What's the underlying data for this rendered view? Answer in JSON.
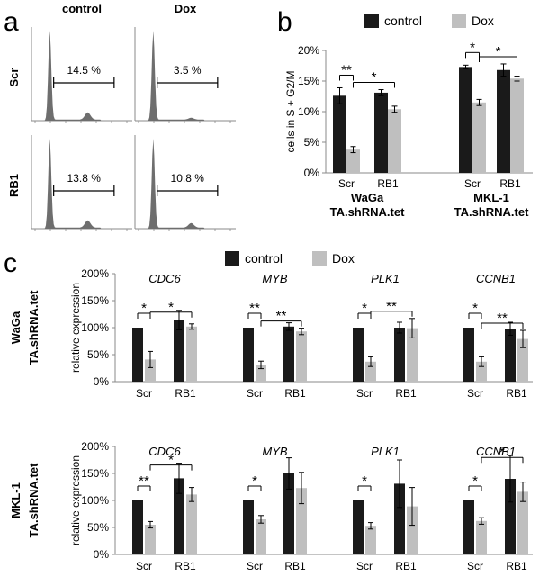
{
  "chart_data": [
    {
      "panel": "a",
      "type": "histogram",
      "column_labels": [
        "control",
        "Dox"
      ],
      "row_labels": [
        "Scr",
        "RB1"
      ],
      "gate_percentages": [
        [
          "14.5 %",
          "3.5 %"
        ],
        [
          "13.8 %",
          "10.8 %"
        ]
      ]
    },
    {
      "panel": "b",
      "type": "bar",
      "ylabel": "cells in S + G2/M",
      "ylim": [
        0,
        20
      ],
      "yticks": [
        "0%",
        "5%",
        "10%",
        "15%",
        "20%"
      ],
      "legend": [
        "control",
        "Dox"
      ],
      "groups": [
        {
          "name_line1": "WaGa",
          "name_line2": "TA.shRNA.tet",
          "categories": [
            "Scr",
            "RB1"
          ],
          "control": [
            12.6,
            13.1
          ],
          "control_err": [
            1.3,
            0.5
          ],
          "dox": [
            3.8,
            10.4
          ],
          "dox_err": [
            0.5,
            0.5
          ],
          "sig": [
            {
              "label": "**",
              "from": "Scr-control",
              "to": "Scr-dox"
            },
            {
              "label": "*",
              "from": "Scr-dox",
              "to": "RB1-dox"
            }
          ]
        },
        {
          "name_line1": "MKL-1",
          "name_line2": "TA.shRNA.tet",
          "categories": [
            "Scr",
            "RB1"
          ],
          "control": [
            17.3,
            16.8
          ],
          "control_err": [
            0.3,
            1.0
          ],
          "dox": [
            11.5,
            15.4
          ],
          "dox_err": [
            0.5,
            0.4
          ],
          "sig": [
            {
              "label": "*",
              "from": "Scr-control",
              "to": "Scr-dox"
            },
            {
              "label": "*",
              "from": "Scr-dox",
              "to": "RB1-dox"
            }
          ]
        }
      ]
    },
    {
      "panel": "c",
      "type": "bar",
      "legend": [
        "control",
        "Dox"
      ],
      "ylabel": "relative expression",
      "rows": [
        {
          "name_line1": "WaGa",
          "name_line2": "TA.shRNA.tet",
          "ylim": [
            0,
            200
          ],
          "yticks": [
            "0%",
            "50%",
            "100%",
            "150%",
            "200%"
          ],
          "genes": [
            {
              "gene": "CDC6",
              "categories": [
                "Scr",
                "RB1"
              ],
              "control": [
                100,
                114
              ],
              "control_err": [
                0,
                18
              ],
              "dox": [
                41,
                102
              ],
              "dox_err": [
                15,
                5
              ],
              "sig": [
                "*",
                "*"
              ]
            },
            {
              "gene": "MYB",
              "categories": [
                "Scr",
                "RB1"
              ],
              "control": [
                100,
                102
              ],
              "control_err": [
                0,
                7
              ],
              "dox": [
                31,
                93
              ],
              "dox_err": [
                7,
                6
              ],
              "sig": [
                "**",
                "**"
              ]
            },
            {
              "gene": "PLK1",
              "categories": [
                "Scr",
                "RB1"
              ],
              "control": [
                100,
                100
              ],
              "control_err": [
                0,
                10
              ],
              "dox": [
                37,
                99
              ],
              "dox_err": [
                9,
                18
              ],
              "sig": [
                "*",
                "**"
              ]
            },
            {
              "gene": "CCNB1",
              "categories": [
                "Scr",
                "RB1"
              ],
              "control": [
                100,
                98
              ],
              "control_err": [
                0,
                12
              ],
              "dox": [
                37,
                79
              ],
              "dox_err": [
                9,
                16
              ],
              "sig": [
                "*",
                "**"
              ]
            }
          ]
        },
        {
          "name_line1": "MKL-1",
          "name_line2": "TA.shRNA.tet",
          "ylim": [
            0,
            200
          ],
          "yticks": [
            "0%",
            "50%",
            "100%",
            "150%",
            "200%"
          ],
          "genes": [
            {
              "gene": "CDC6",
              "categories": [
                "Scr",
                "RB1"
              ],
              "control": [
                100,
                141
              ],
              "control_err": [
                0,
                28
              ],
              "dox": [
                55,
                111
              ],
              "dox_err": [
                6,
                13
              ],
              "sig": [
                "**",
                "*"
              ]
            },
            {
              "gene": "MYB",
              "categories": [
                "Scr",
                "RB1"
              ],
              "control": [
                100,
                150
              ],
              "control_err": [
                0,
                29
              ],
              "dox": [
                65,
                123
              ],
              "dox_err": [
                7,
                29
              ],
              "sig": [
                "*",
                null
              ]
            },
            {
              "gene": "PLK1",
              "categories": [
                "Scr",
                "RB1"
              ],
              "control": [
                100,
                131
              ],
              "control_err": [
                0,
                44
              ],
              "dox": [
                53,
                89
              ],
              "dox_err": [
                6,
                35
              ],
              "sig": [
                "*",
                null
              ]
            },
            {
              "gene": "CCNB1",
              "categories": [
                "Scr",
                "RB1"
              ],
              "control": [
                100,
                140
              ],
              "control_err": [
                0,
                43
              ],
              "dox": [
                62,
                116
              ],
              "dox_err": [
                6,
                18
              ],
              "sig": [
                "*",
                "*"
              ]
            }
          ]
        }
      ]
    }
  ],
  "panel_labels": [
    "a",
    "b",
    "c"
  ],
  "colors": {
    "control": "#1a1a1a",
    "dox": "#bfbfbf",
    "histogram": "#6e6e6e",
    "axis": "#8a8a8a"
  }
}
